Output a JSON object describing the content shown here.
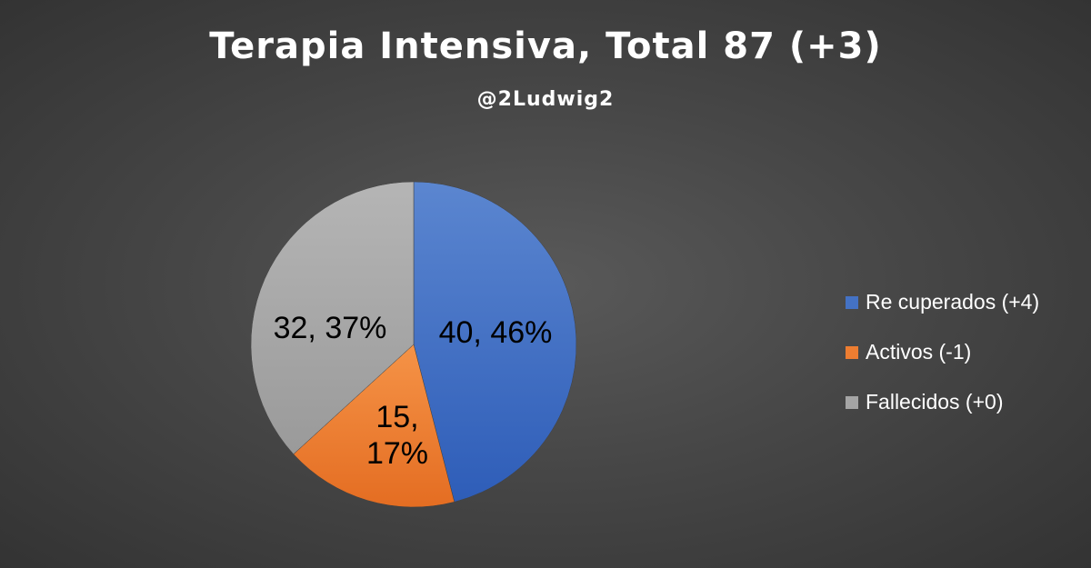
{
  "chart_data": {
    "type": "pie",
    "title": "Terapia Intensiva, Total 87 (+3)",
    "subtitle": "@2Ludwig2",
    "slices": [
      {
        "name": "Re cuperados (+4)",
        "value": 40,
        "percent": "46%",
        "label": [
          "40, 46%"
        ],
        "color": "#4472C4"
      },
      {
        "name": "Activos (-1)",
        "value": 15,
        "percent": "17%",
        "label": [
          "15,",
          "17%"
        ],
        "color": "#ED7D31"
      },
      {
        "name": "Fallecidos (+0)",
        "value": 32,
        "percent": "37%",
        "label": [
          "32, 37%"
        ],
        "color": "#A5A5A5"
      }
    ],
    "legend_position": "right"
  },
  "colors": {
    "background": "#404040",
    "text": "#FFFFFF",
    "label_text": "#000000"
  }
}
